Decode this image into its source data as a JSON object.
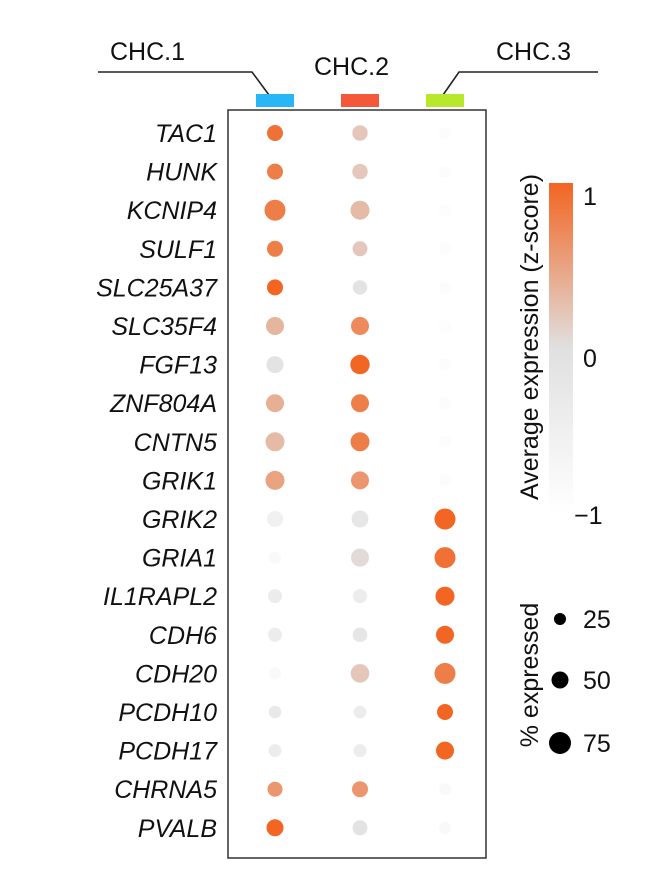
{
  "chart_data": {
    "type": "scatter",
    "subtype": "dot-plot",
    "clusters": [
      {
        "label": "CHC.1",
        "color": "#29b6f6"
      },
      {
        "label": "CHC.2",
        "color": "#f4573a"
      },
      {
        "label": "CHC.3",
        "color": "#b8e82c"
      }
    ],
    "genes": [
      "TAC1",
      "HUNK",
      "KCNIP4",
      "SULF1",
      "SLC25A37",
      "SLC35F4",
      "FGF13",
      "ZNF804A",
      "CNTN5",
      "GRIK1",
      "GRIK2",
      "GRIA1",
      "IL1RAPL2",
      "CDH6",
      "CDH20",
      "PCDH10",
      "PCDH17",
      "CHRNA5",
      "PVALB"
    ],
    "expression_zscore": [
      [
        0.9,
        0.2,
        -0.9
      ],
      [
        0.8,
        0.2,
        -0.9
      ],
      [
        0.8,
        0.3,
        -0.9
      ],
      [
        0.8,
        0.2,
        -0.9
      ],
      [
        1.0,
        -0.1,
        -0.9
      ],
      [
        0.35,
        0.7,
        -0.9
      ],
      [
        -0.1,
        1.0,
        -0.9
      ],
      [
        0.4,
        0.8,
        -0.9
      ],
      [
        0.3,
        0.8,
        -0.9
      ],
      [
        0.5,
        0.6,
        -0.9
      ],
      [
        -0.5,
        -0.2,
        1.0
      ],
      [
        -0.8,
        0.05,
        0.9
      ],
      [
        -0.4,
        -0.4,
        1.0
      ],
      [
        -0.4,
        -0.2,
        1.0
      ],
      [
        -0.8,
        0.2,
        0.8
      ],
      [
        -0.3,
        -0.4,
        1.0
      ],
      [
        -0.4,
        -0.4,
        1.0
      ],
      [
        0.6,
        0.6,
        -0.8
      ],
      [
        1.0,
        -0.1,
        -0.8
      ]
    ],
    "percent_expressed": [
      [
        45,
        42,
        25
      ],
      [
        45,
        42,
        25
      ],
      [
        70,
        60,
        25
      ],
      [
        45,
        40,
        25
      ],
      [
        45,
        38,
        25
      ],
      [
        55,
        55,
        25
      ],
      [
        50,
        62,
        25
      ],
      [
        55,
        55,
        25
      ],
      [
        60,
        60,
        25
      ],
      [
        60,
        55,
        25
      ],
      [
        45,
        50,
        70
      ],
      [
        25,
        55,
        70
      ],
      [
        35,
        35,
        60
      ],
      [
        35,
        38,
        55
      ],
      [
        25,
        58,
        70
      ],
      [
        28,
        28,
        45
      ],
      [
        30,
        30,
        55
      ],
      [
        40,
        45,
        25
      ],
      [
        50,
        40,
        25
      ]
    ],
    "color_scale": {
      "title": "Average expression (z-score)",
      "min": -1,
      "mid": 0,
      "max": 1,
      "low_color": "#ffffff",
      "mid_color": "#e0e0e0",
      "high_color": "#f26522",
      "ticks": [
        "1",
        "0",
        "−1"
      ]
    },
    "size_legend": {
      "title": "% expressed",
      "values": [
        25,
        50,
        75
      ],
      "labels": [
        "25",
        "50",
        "75"
      ]
    }
  }
}
